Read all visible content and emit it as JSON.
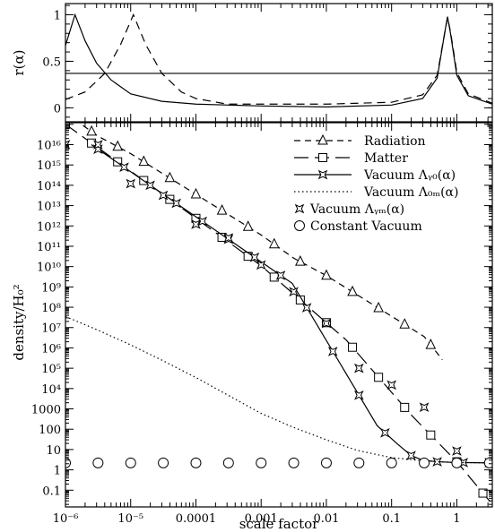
{
  "chart_data": [
    {
      "type": "line",
      "panel": "top",
      "ylabel": "r(α)",
      "x_scale": "log",
      "xlim": [
        1e-06,
        3.5
      ],
      "ylim": [
        -0.15,
        1.12
      ],
      "yticks": [
        0,
        0.5,
        1
      ],
      "ytick_labels": [
        "0",
        "0.5",
        "1"
      ],
      "series": [
        {
          "style": "solid",
          "x": [
            1e-06,
            1.4e-06,
            2e-06,
            3e-06,
            5e-06,
            1e-05,
            3e-05,
            0.0001,
            0.001,
            0.01,
            0.1,
            0.3,
            0.5,
            0.65,
            0.72,
            0.8,
            1,
            1.5,
            3.5
          ],
          "y": [
            0.67,
            1.0,
            0.72,
            0.48,
            0.3,
            0.15,
            0.07,
            0.04,
            0.02,
            0.01,
            0.03,
            0.1,
            0.32,
            0.8,
            0.98,
            0.8,
            0.35,
            0.13,
            0.04
          ]
        },
        {
          "style": "dashed",
          "x": [
            1e-06,
            2e-06,
            4e-06,
            7e-06,
            1.1e-05,
            1.7e-05,
            3e-05,
            6e-05,
            0.0001,
            0.0003,
            0.001,
            0.01,
            0.1,
            0.3,
            0.5,
            0.65,
            0.72,
            0.8,
            1,
            1.5,
            3.5
          ],
          "y": [
            0.09,
            0.17,
            0.37,
            0.68,
            1.0,
            0.68,
            0.37,
            0.17,
            0.1,
            0.04,
            0.04,
            0.04,
            0.06,
            0.14,
            0.35,
            0.8,
            0.97,
            0.82,
            0.38,
            0.15,
            0.05
          ]
        },
        {
          "style": "solid",
          "x": [
            1e-06,
            3.5
          ],
          "y": [
            0.37,
            0.37
          ]
        }
      ]
    },
    {
      "type": "line",
      "panel": "bottom",
      "xlabel": "scale factor",
      "ylabel": "density/H₀²",
      "x_scale": "log",
      "y_scale": "log",
      "xlim": [
        1e-06,
        3.5
      ],
      "ylim": [
        0.015,
        1.2e+17
      ],
      "xticks": [
        1e-06,
        1e-05,
        0.0001,
        0.001,
        0.01,
        0.1,
        1
      ],
      "xtick_labels": [
        "10⁻⁶",
        "10⁻⁵",
        "0.0001",
        "0.001",
        "0.01",
        "0.1",
        "1"
      ],
      "yticks": [
        0.1,
        1,
        10,
        100,
        1000,
        10000.0,
        100000.0,
        1000000.0,
        10000000.0,
        100000000.0,
        1000000000.0,
        10000000000.0,
        100000000000.0,
        1000000000000.0,
        10000000000000.0,
        100000000000000.0,
        1000000000000000.0,
        1e+16
      ],
      "ytick_labels": [
        "0.1",
        "1",
        "10",
        "100",
        "1000",
        "10⁴",
        "10⁵",
        "10⁶",
        "10⁷",
        "10⁸",
        "10⁹",
        "10¹⁰",
        "10¹¹",
        "10¹²",
        "10¹³",
        "10¹⁴",
        "10¹⁵",
        "10¹⁶"
      ],
      "legend_position": "top-right",
      "series": [
        {
          "name": "Radiation",
          "style": "short-dash",
          "marker": "triangle",
          "x": [
            1e-06,
            3.16e-06,
            1e-05,
            3.16e-05,
            0.0001,
            0.000316,
            0.001,
            0.00316,
            0.01,
            0.0316,
            0.1,
            0.316,
            0.6
          ],
          "y": [
            3.6e+17,
            2.6e+16,
            3600000000000000.0,
            360000000000000.0,
            36000000000000.0,
            3600000000000.0,
            360000000000.0,
            26000000000.0,
            3600000000.0,
            360000000.0,
            36000000.0,
            3600000.0,
            260000.0
          ]
        },
        {
          "name": "Matter",
          "style": "long-dash",
          "marker": "square",
          "x": [
            1e-06,
            2.5e-05,
            0.001,
            0.02,
            0.2,
            1.0,
            3.5
          ],
          "y": [
            1e+17,
            60000000000000.0,
            11000000000.0,
            2500000.0,
            500,
            2.5,
            0.02
          ]
        },
        {
          "name": "Vacuum Λᵧ₀(α)",
          "style": "solid",
          "marker": "star",
          "x": [
            2.5e-06,
            0.003,
            0.06,
            0.12,
            0.2,
            0.3,
            0.5,
            1,
            3.5
          ],
          "y": [
            1e+16,
            1500000000.0,
            150,
            20,
            5,
            3,
            2.5,
            2.3,
            2.2
          ]
        },
        {
          "name": "Vacuum Λ₀ₘ(α)",
          "style": "dotted",
          "marker": "none",
          "x": [
            1e-06,
            3e-06,
            1e-05,
            3e-05,
            0.0001,
            0.0003,
            0.001,
            0.003,
            0.01,
            0.03,
            0.1,
            0.2,
            0.3,
            0.5,
            1,
            3.5
          ],
          "y": [
            35000000.0,
            8000000.0,
            1400000.0,
            250000.0,
            35000.0,
            5000,
            600,
            130,
            30,
            9,
            4,
            3.2,
            2.8,
            2.5,
            2.3,
            2.2
          ]
        },
        {
          "name": "Vacuum Λᵧₘ(α)",
          "style": "none",
          "marker": "star",
          "x": [
            1e-06,
            3.16e-06,
            1e-05,
            3.16e-05,
            0.0001,
            0.000316,
            0.001,
            0.00316,
            0.01,
            0.0316,
            0.1,
            0.316,
            1,
            3.16
          ],
          "y": [
            1e+16,
            1e+16,
            120000000000000.0,
            32000000000000.0,
            1200000000000.0,
            260000000000.0,
            12000000000.0,
            580000000.0,
            16000000.0,
            100000.0,
            15000.0,
            1200.0,
            8.5,
            2.3
          ]
        },
        {
          "name": "Constant Vacuum",
          "style": "none",
          "marker": "circle",
          "x": [
            1e-06,
            3.16e-06,
            1e-05,
            3.16e-05,
            0.0001,
            0.000316,
            0.001,
            0.00316,
            0.01,
            0.0316,
            0.1,
            0.316,
            1,
            3.16
          ],
          "y": [
            2.2,
            2.2,
            2.2,
            2.2,
            2.2,
            2.2,
            2.2,
            2.2,
            2.2,
            2.2,
            2.2,
            2.2,
            2.2,
            2.2
          ]
        }
      ]
    }
  ]
}
